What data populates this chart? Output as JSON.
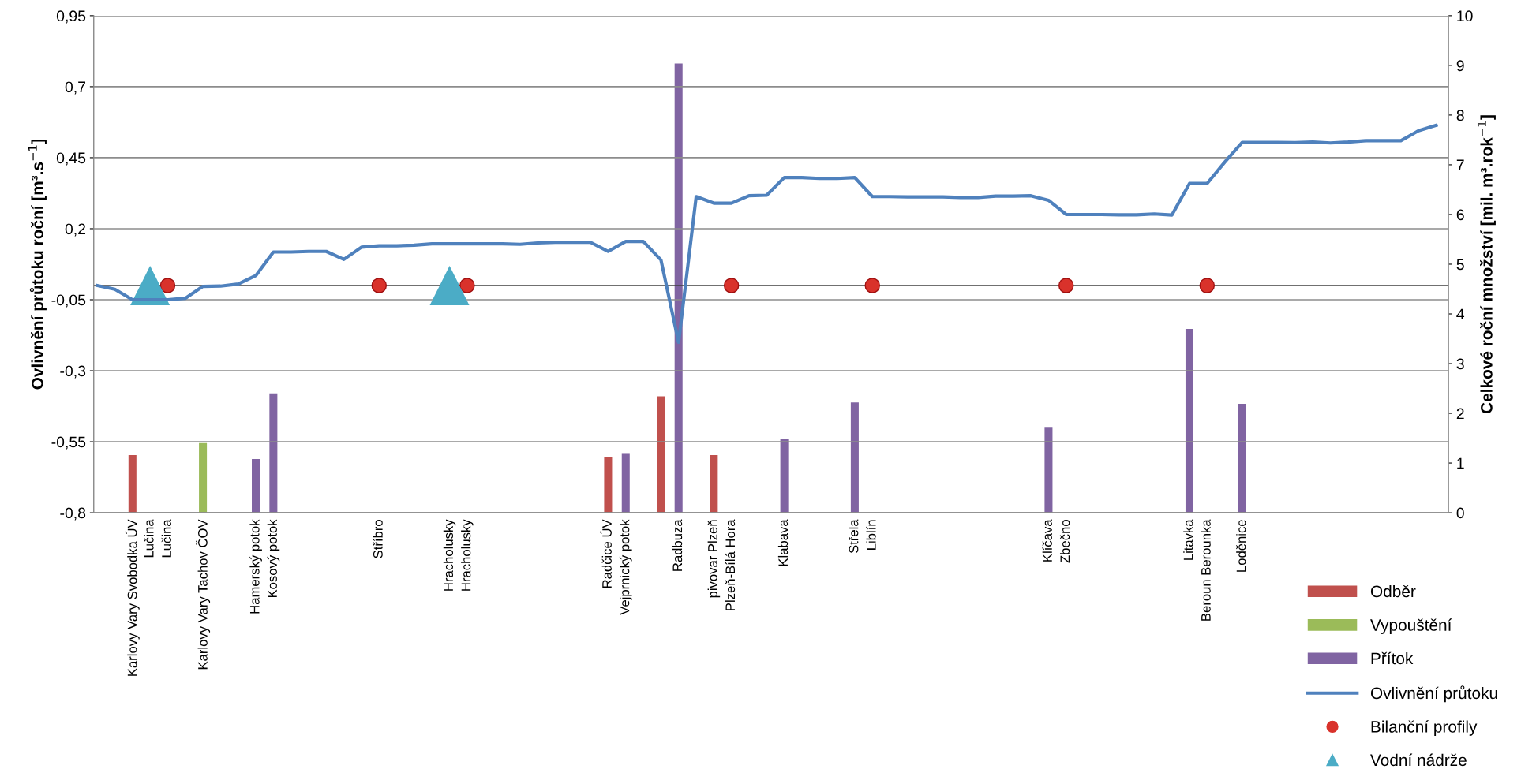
{
  "chart_data": {
    "type": "bar",
    "categories": [
      null,
      null,
      "Karlovy Vary Svobodka ÚV",
      "Lučina",
      "Lučina",
      null,
      "Karlovy Vary Tachov ČOV",
      null,
      null,
      "Hamerský potok",
      "Kosový potok",
      null,
      null,
      null,
      null,
      null,
      "Stříbro",
      null,
      null,
      null,
      "Hracholusky",
      "Hracholusky",
      null,
      null,
      null,
      null,
      null,
      null,
      null,
      "Radčice ÚV",
      "Vejprnický potok",
      null,
      null,
      "Radbuza",
      null,
      "pivovar Plzeň",
      "Plzeň-Bílá Hora",
      null,
      null,
      "Klabava",
      null,
      null,
      null,
      "Střela",
      "Liblín",
      null,
      null,
      null,
      null,
      null,
      null,
      null,
      null,
      null,
      "Klíčava",
      "Zbečno",
      null,
      null,
      null,
      null,
      null,
      null,
      "Litavka",
      "Beroun Berounka",
      null,
      "Loděnice",
      null,
      null,
      null,
      null,
      null,
      null,
      null,
      null,
      null,
      null,
      null
    ],
    "series": [
      {
        "name": "Odběr",
        "axis": "y2",
        "color": "#c0504d",
        "values": [
          null,
          null,
          1.16,
          null,
          null,
          null,
          null,
          null,
          null,
          null,
          null,
          null,
          null,
          null,
          null,
          null,
          null,
          null,
          null,
          null,
          null,
          null,
          null,
          null,
          null,
          null,
          null,
          null,
          null,
          1.12,
          null,
          null,
          2.34,
          null,
          null,
          1.16,
          null,
          null,
          null,
          null,
          null,
          null,
          null,
          null,
          null,
          null,
          null,
          null,
          null,
          null,
          null,
          null,
          null,
          null,
          null,
          null,
          null,
          null,
          null,
          null,
          null,
          null,
          null,
          null,
          null,
          null,
          null,
          null,
          null,
          null,
          null,
          null,
          null,
          null,
          null,
          null,
          null
        ]
      },
      {
        "name": "Vypouštění",
        "axis": "y2",
        "color": "#9bbb59",
        "values": [
          null,
          null,
          null,
          null,
          null,
          null,
          1.4,
          null,
          null,
          null,
          null,
          null,
          null,
          null,
          null,
          null,
          null,
          null,
          null,
          null,
          null,
          null,
          null,
          null,
          null,
          null,
          null,
          null,
          null,
          null,
          null,
          null,
          null,
          null,
          null,
          null,
          null,
          null,
          null,
          null,
          null,
          null,
          null,
          null,
          null,
          null,
          null,
          null,
          null,
          null,
          null,
          null,
          null,
          null,
          null,
          null,
          null,
          null,
          null,
          null,
          null,
          null,
          null,
          null,
          null,
          null,
          null,
          null,
          null,
          null,
          null,
          null,
          null,
          null,
          null,
          null,
          null
        ]
      },
      {
        "name": "Přítok",
        "axis": "y2",
        "color": "#8064a2",
        "values": [
          null,
          null,
          null,
          null,
          null,
          null,
          null,
          null,
          null,
          1.08,
          2.4,
          null,
          null,
          null,
          null,
          null,
          null,
          null,
          null,
          null,
          null,
          null,
          null,
          null,
          null,
          null,
          null,
          null,
          null,
          null,
          1.2,
          null,
          null,
          9.04,
          null,
          null,
          null,
          null,
          null,
          1.48,
          null,
          null,
          null,
          2.22,
          null,
          null,
          null,
          null,
          null,
          null,
          null,
          null,
          null,
          null,
          1.71,
          null,
          null,
          null,
          null,
          null,
          null,
          null,
          3.7,
          null,
          null,
          2.19,
          null,
          null,
          null,
          null,
          null,
          null,
          null,
          null,
          null,
          null,
          null
        ]
      },
      {
        "name": "Ovlivnění průtoku",
        "type": "line",
        "color": "#4f81bd",
        "values": [
          0.0,
          -0.013,
          -0.05,
          -0.05,
          -0.05,
          -0.045,
          -0.003,
          -0.002,
          0.005,
          0.035,
          0.118,
          0.118,
          0.12,
          0.12,
          0.092,
          0.135,
          0.14,
          0.14,
          0.142,
          0.147,
          0.147,
          0.147,
          0.147,
          0.147,
          0.145,
          0.15,
          0.152,
          0.152,
          0.152,
          0.12,
          0.155,
          0.155,
          0.09,
          -0.2,
          0.313,
          0.29,
          0.29,
          0.316,
          0.318,
          0.38,
          0.38,
          0.377,
          0.377,
          0.38,
          0.313,
          0.313,
          0.312,
          0.312,
          0.312,
          0.31,
          0.31,
          0.315,
          0.315,
          0.316,
          0.3,
          0.25,
          0.25,
          0.25,
          0.249,
          0.249,
          0.252,
          0.248,
          0.359,
          0.359,
          0.434,
          0.504,
          0.504,
          0.504,
          0.503,
          0.505,
          0.502,
          0.505,
          0.51,
          0.51,
          0.51,
          0.545,
          0.564
        ]
      },
      {
        "name": "Bilanční profily",
        "type": "scatter",
        "marker": "circle",
        "color": "#d9322b",
        "values": [
          null,
          null,
          null,
          null,
          0,
          null,
          null,
          null,
          null,
          null,
          null,
          null,
          null,
          null,
          null,
          null,
          0,
          null,
          null,
          null,
          null,
          0,
          null,
          null,
          null,
          null,
          null,
          null,
          null,
          null,
          null,
          null,
          null,
          null,
          null,
          null,
          0,
          null,
          null,
          null,
          null,
          null,
          null,
          null,
          0,
          null,
          null,
          null,
          null,
          null,
          null,
          null,
          null,
          null,
          null,
          0,
          null,
          null,
          null,
          null,
          null,
          null,
          null,
          0,
          null,
          null,
          null,
          null,
          null,
          null,
          null,
          null,
          null,
          null,
          null,
          null,
          null
        ]
      },
      {
        "name": "Vodní nádrže",
        "type": "scatter",
        "marker": "triangle",
        "color": "#4bacc6",
        "values": [
          null,
          null,
          null,
          0,
          null,
          null,
          null,
          null,
          null,
          null,
          null,
          null,
          null,
          null,
          null,
          null,
          null,
          null,
          null,
          null,
          0,
          null,
          null,
          null,
          null,
          null,
          null,
          null,
          null,
          null,
          null,
          null,
          null,
          null,
          null,
          null,
          null,
          null,
          null,
          null,
          null,
          null,
          null,
          null,
          null,
          null,
          null,
          null,
          null,
          null,
          null,
          null,
          null,
          null,
          null,
          null,
          null,
          null,
          null,
          null,
          null,
          null,
          null,
          null,
          null,
          null,
          null,
          null,
          null,
          null,
          null,
          null,
          null,
          null,
          null,
          null,
          null
        ]
      }
    ],
    "ylabel": "Ovlivnění průtoku roční [m³.s$^{−1}$]",
    "y2label": "Celkové roční množství [mil. m³.rok$^{−1}$]",
    "ylim": [
      -0.8,
      0.95
    ],
    "yticks": [
      {
        "value": 0.95,
        "label": "0,95"
      },
      {
        "value": 0.7,
        "label": "0,7"
      },
      {
        "value": 0.45,
        "label": "0,45"
      },
      {
        "value": 0.2,
        "label": "0,2"
      },
      {
        "value": -0.05,
        "label": "-0,05"
      },
      {
        "value": -0.3,
        "label": "-0,3"
      },
      {
        "value": -0.55,
        "label": "-0,55"
      },
      {
        "value": -0.8,
        "label": "-0,8"
      }
    ],
    "y2lim": [
      0,
      10
    ],
    "y2ticks": [
      0,
      1,
      2,
      3,
      4,
      5,
      6,
      7,
      8,
      9,
      10
    ],
    "ref_lines": [
      {
        "axis": "y",
        "value": 0,
        "color": "#404040"
      }
    ],
    "grid": "y",
    "legend": "bottom right"
  }
}
